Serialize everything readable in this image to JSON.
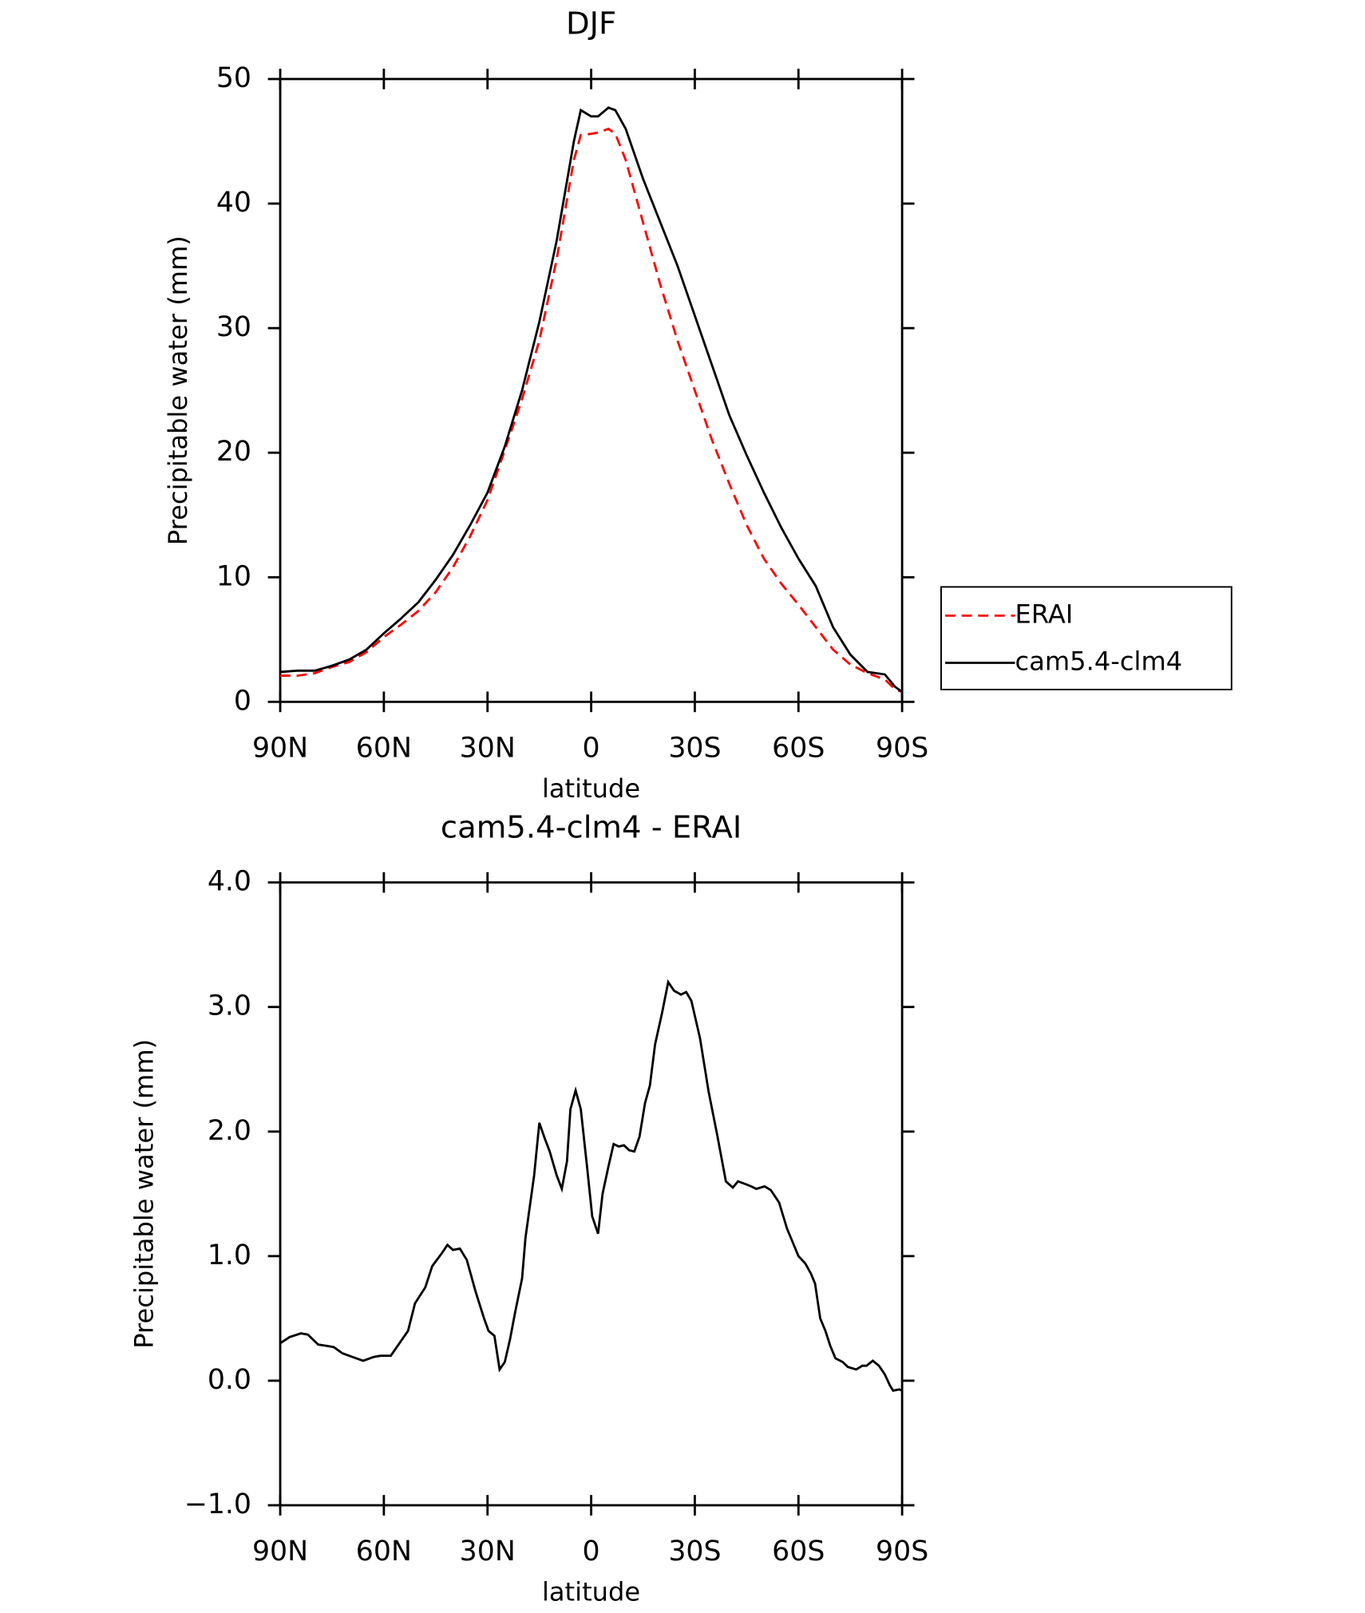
{
  "chart_data": [
    {
      "type": "line",
      "title": "DJF",
      "x_label": "latitude",
      "y_label": "Precipitable water (mm)",
      "x": [
        90,
        85,
        80,
        75,
        70,
        65,
        60,
        55,
        50,
        45,
        40,
        35,
        30,
        25,
        20,
        15,
        10,
        5,
        3,
        0,
        -2,
        -5,
        -7,
        -10,
        -15,
        -20,
        -25,
        -30,
        -35,
        -40,
        -45,
        -50,
        -55,
        -60,
        -65,
        -70,
        -75,
        -80,
        -85,
        -88,
        -90
      ],
      "series": [
        {
          "name": "ERAI",
          "color": "#ff0000",
          "dash": true,
          "values": [
            2.1,
            2.1,
            2.3,
            2.8,
            3.2,
            4.0,
            5.2,
            6.2,
            7.3,
            8.8,
            10.8,
            13.3,
            16.2,
            20.2,
            24.3,
            29,
            35.5,
            43.5,
            45.5,
            45.6,
            45.7,
            46,
            45.6,
            43.5,
            38.5,
            33.5,
            29,
            25,
            21,
            17.5,
            14.2,
            11.5,
            9.5,
            7.8,
            6,
            4.2,
            3,
            2.3,
            1.8,
            1.0,
            0.8
          ]
        },
        {
          "name": "cam5.4-clm4",
          "color": "#000000",
          "dash": false,
          "values": [
            2.4,
            2.5,
            2.5,
            2.9,
            3.4,
            4.2,
            5.5,
            6.7,
            8.0,
            9.8,
            11.8,
            14.2,
            16.8,
            20.5,
            25,
            30.5,
            37,
            45,
            47.5,
            47,
            47,
            47.7,
            47.5,
            46,
            42,
            38.5,
            35,
            31,
            27,
            23,
            19.8,
            16.8,
            14,
            11.5,
            9.3,
            6,
            3.8,
            2.4,
            2.2,
            1.2,
            0.8
          ]
        }
      ],
      "xlim": [
        90,
        -90
      ],
      "xticks": [
        {
          "value": 90,
          "label": "90N"
        },
        {
          "value": 60,
          "label": "60N"
        },
        {
          "value": 30,
          "label": "30N"
        },
        0,
        {
          "value": -30,
          "label": "30S"
        },
        {
          "value": -60,
          "label": "60S"
        },
        {
          "value": -90,
          "label": "90S"
        }
      ],
      "ylim": [
        0,
        50
      ],
      "yticks": [
        0,
        10,
        20,
        30,
        40,
        50
      ],
      "legend": "right"
    },
    {
      "type": "line",
      "title": "cam5.4-clm4 - ERAI",
      "x_label": "latitude",
      "y_label": "Precipitable water (mm)",
      "x": [
        90,
        87.3,
        84,
        82,
        79,
        76.6,
        74.5,
        72,
        69,
        66,
        63,
        61,
        58,
        55.5,
        53,
        51,
        48,
        46,
        43.3,
        41.6,
        40,
        38,
        36,
        33.5,
        31,
        29.7,
        28,
        26.5,
        25,
        23.5,
        22,
        20,
        19,
        16.5,
        15,
        13.5,
        12,
        10,
        8.5,
        7,
        6,
        4.5,
        3,
        1.2,
        -0.3,
        -2,
        -3.3,
        -5,
        -6.5,
        -8,
        -9.5,
        -11,
        -12.5,
        -14,
        -15.6,
        -17,
        -18.5,
        -20.5,
        -22.3,
        -24,
        -26,
        -27.5,
        -29,
        -31.5,
        -34,
        -36.5,
        -39,
        -41,
        -42.5,
        -44.5,
        -46.3,
        -47.8,
        -50.2,
        -52,
        -54.4,
        -56.7,
        -58.5,
        -60,
        -62,
        -63.6,
        -64.8,
        -66.3,
        -67.8,
        -69.2,
        -70.7,
        -72.8,
        -74.3,
        -76.7,
        -78.5,
        -79.7,
        -81.5,
        -83.3,
        -85,
        -86.5,
        -87.4,
        -89.2,
        -90
      ],
      "values": [
        0.3,
        0.35,
        0.38,
        0.37,
        0.29,
        0.28,
        0.27,
        0.22,
        0.19,
        0.16,
        0.19,
        0.2,
        0.2,
        0.3,
        0.4,
        0.62,
        0.75,
        0.92,
        1.02,
        1.09,
        1.05,
        1.06,
        0.97,
        0.72,
        0.5,
        0.4,
        0.36,
        0.09,
        0.15,
        0.33,
        0.55,
        0.82,
        1.15,
        1.65,
        2.07,
        1.95,
        1.84,
        1.65,
        1.54,
        1.76,
        2.18,
        2.33,
        2.18,
        1.72,
        1.32,
        1.18,
        1.5,
        1.72,
        1.9,
        1.88,
        1.89,
        1.85,
        1.84,
        1.96,
        2.23,
        2.37,
        2.7,
        2.95,
        3.2,
        3.13,
        3.1,
        3.12,
        3.05,
        2.75,
        2.32,
        1.97,
        1.6,
        1.55,
        1.6,
        1.58,
        1.56,
        1.54,
        1.56,
        1.53,
        1.43,
        1.22,
        1.1,
        1.0,
        0.94,
        0.86,
        0.78,
        0.5,
        0.4,
        0.28,
        0.18,
        0.15,
        0.11,
        0.09,
        0.12,
        0.12,
        0.16,
        0.12,
        0.05,
        -0.04,
        -0.08,
        -0.07,
        -0.08
      ],
      "color": "#000000",
      "xlim": [
        90,
        -90
      ],
      "xticks": [
        {
          "value": 90,
          "label": "90N"
        },
        {
          "value": 60,
          "label": "60N"
        },
        {
          "value": 30,
          "label": "30N"
        },
        0,
        {
          "value": -30,
          "label": "30S"
        },
        {
          "value": -60,
          "label": "60S"
        },
        {
          "value": -90,
          "label": "90S"
        }
      ],
      "ylim": [
        -1,
        4
      ],
      "yticks": [
        {
          "value": -1,
          "label": "−1.0"
        },
        {
          "value": 0,
          "label": "0.0"
        },
        {
          "value": 1,
          "label": "1.0"
        },
        {
          "value": 2,
          "label": "2.0"
        },
        {
          "value": 3,
          "label": "3.0"
        },
        {
          "value": 4,
          "label": "4.0"
        }
      ]
    }
  ]
}
